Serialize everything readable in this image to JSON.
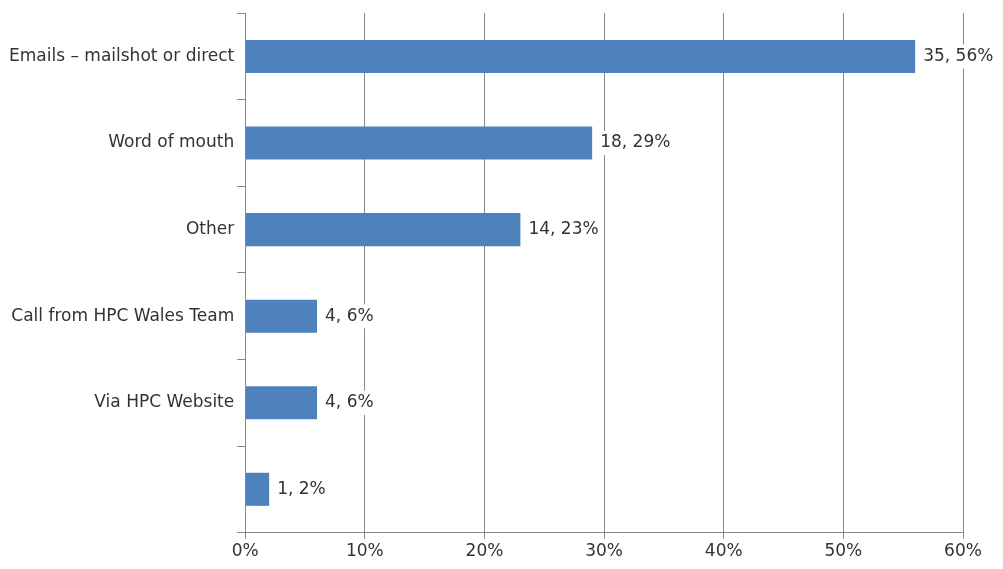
{
  "chart_data": {
    "type": "bar",
    "orientation": "horizontal",
    "categories": [
      "Emails – mailshot or direct",
      "Word of mouth",
      "Other",
      "Call from HPC Wales Team",
      "Via HPC Website",
      null
    ],
    "values": [
      56,
      29,
      23,
      6,
      6,
      2
    ],
    "value_labels": [
      "35, 56%",
      "18, 29%",
      "14, 23%",
      "4, 6%",
      "4, 6%",
      "1, 2%"
    ],
    "color": "#4f81bd",
    "xlim": [
      0,
      60
    ],
    "xticks": [
      {
        "value": 0,
        "label": "0%"
      },
      {
        "value": 10,
        "label": "10%"
      },
      {
        "value": 20,
        "label": "20%"
      },
      {
        "value": 30,
        "label": "30%"
      },
      {
        "value": 40,
        "label": "40%"
      },
      {
        "value": 50,
        "label": "50%"
      },
      {
        "value": 60,
        "label": "60%"
      }
    ],
    "grid": "x",
    "legend": false
  }
}
